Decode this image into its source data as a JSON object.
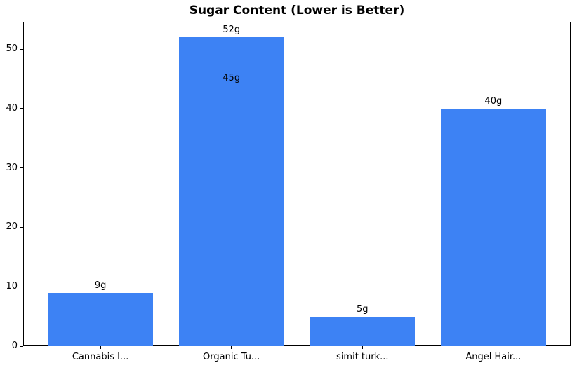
{
  "chart_data": {
    "type": "bar",
    "title": "Sugar Content (Lower is Better)",
    "categories": [
      "Cannabis I...",
      "Organic Tu...",
      "simit turk...",
      "Angel Hair..."
    ],
    "values": [
      9,
      52,
      5,
      40
    ],
    "bar_labels": [
      "9g",
      "52g",
      "5g",
      "40g"
    ],
    "extra_labels": [
      {
        "category_index": 1,
        "value": 45,
        "text": "45g"
      }
    ],
    "yticks": [
      0,
      10,
      20,
      30,
      40,
      50
    ],
    "ytick_labels": [
      "0",
      "10",
      "20",
      "30",
      "40",
      "50"
    ],
    "ylim": [
      0,
      54.6
    ],
    "xlabel": "",
    "ylabel": "",
    "grid": false,
    "legend": "none",
    "bar_color": "#3d82f4",
    "text_color": "#000000",
    "background_color": "#ffffff"
  }
}
